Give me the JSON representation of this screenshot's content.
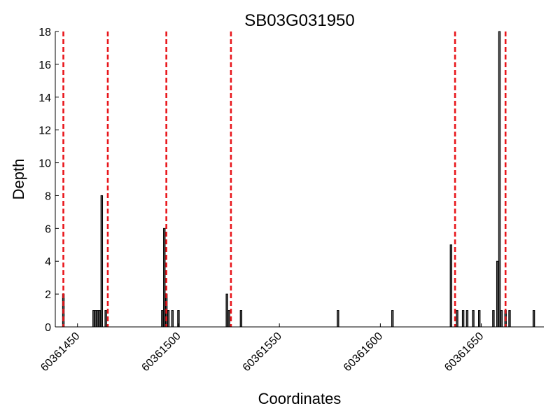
{
  "chart_data": {
    "type": "bar",
    "title": "SB03G031950",
    "xlabel": "Coordinates",
    "ylabel": "Depth",
    "xlim": [
      60361439,
      60361681
    ],
    "ylim": [
      0,
      18
    ],
    "x_ticks": [
      60361450,
      60361500,
      60361550,
      60361600,
      60361650
    ],
    "x_tick_labels": [
      "60361450",
      "60361500",
      "60361550",
      "60361600",
      "60361650"
    ],
    "y_ticks": [
      0,
      2,
      4,
      6,
      8,
      10,
      12,
      14,
      16,
      18
    ],
    "y_tick_labels": [
      "0",
      "2",
      "4",
      "6",
      "8",
      "10",
      "12",
      "14",
      "16",
      "18"
    ],
    "grid": false,
    "bar_fill_color": "#555555",
    "bar_edge_color": "#000000",
    "x": [
      60361443,
      60361458,
      60361459,
      60361460,
      60361461,
      60361462,
      60361464,
      60361492,
      60361493,
      60361494,
      60361495,
      60361497,
      60361500,
      60361524,
      60361525,
      60361531,
      60361579,
      60361606,
      60361635,
      60361638,
      60361641,
      60361643,
      60361646,
      60361649,
      60361656,
      60361658,
      60361659,
      60361660,
      60361662,
      60361664,
      60361676
    ],
    "values": [
      2,
      1,
      1,
      1,
      1,
      8,
      1,
      1,
      6,
      2,
      1,
      1,
      1,
      2,
      1,
      1,
      1,
      1,
      5,
      1,
      1,
      1,
      1,
      1,
      1,
      4,
      18,
      1,
      1,
      1,
      1
    ],
    "vlines": {
      "positions": [
        60361443,
        60361465,
        60361494,
        60361526,
        60361637,
        60361662
      ],
      "color": "#e8161b",
      "style": "dashed"
    }
  }
}
